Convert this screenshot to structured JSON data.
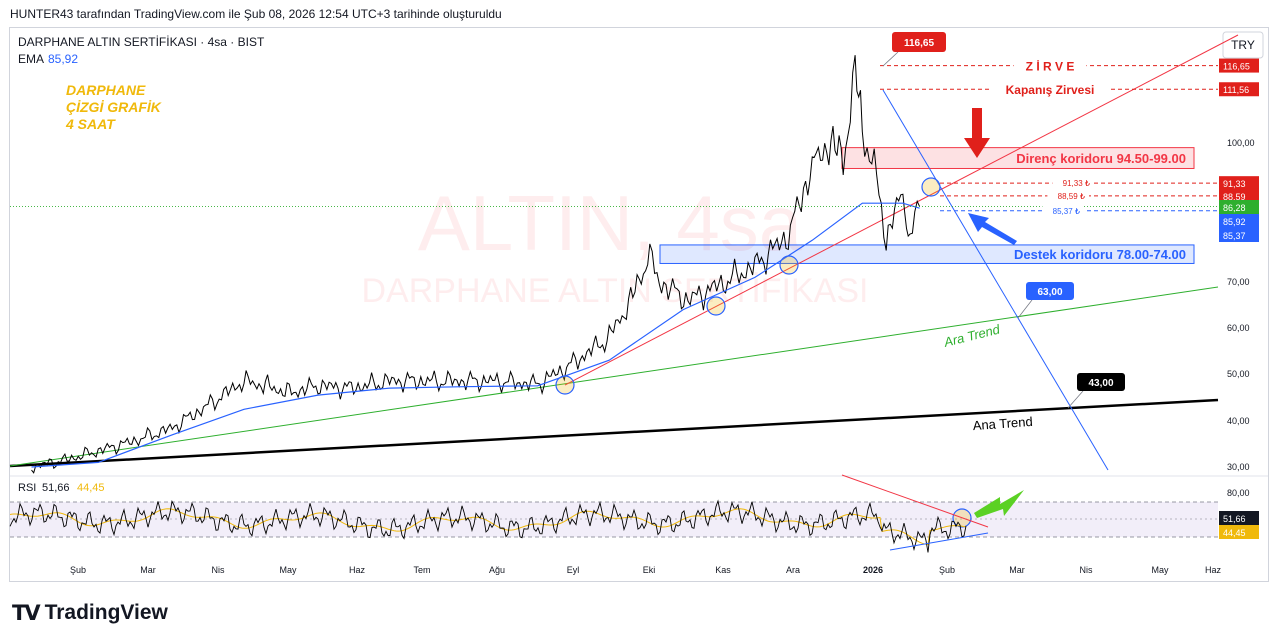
{
  "header": {
    "text": "HUNTER43 tarafından TradingView.com ile Şub 08, 2026 12:54 UTC+3 tarihinde oluşturuldu"
  },
  "chart_data": [
    {
      "type": "line",
      "title": "DARPHANE ALTIN SERTİFİKASI · 4sa · BIST",
      "currency": "TRY",
      "ema_label": "EMA",
      "ema_value": "85,92",
      "watermark": {
        "line1": "ALTIN, 4sa",
        "line2": "DARPHANE ALTIN SERTİFİKASI"
      },
      "overlay_title": [
        "DARPHANE",
        "ÇİZGİ GRAFİK",
        "4 SAAT"
      ],
      "yticks": [
        "100,00",
        "70,00",
        "60,00",
        "50,00",
        "40,00",
        "30,00"
      ],
      "yticks_values": [
        100,
        70,
        60,
        50,
        40,
        30
      ],
      "x_labels": [
        "Şub",
        "Mar",
        "Nis",
        "May",
        "Haz",
        "Tem",
        "Ağu",
        "Eyl",
        "Eki",
        "Kas",
        "Ara",
        "2026",
        "Şub",
        "Mar",
        "Nis",
        "May",
        "Haz"
      ],
      "price_series": [
        [
          "2025-02-01",
          30.0
        ],
        [
          "2025-02-15",
          31.5
        ],
        [
          "2025-03-01",
          33.5
        ],
        [
          "2025-03-15",
          35.5
        ],
        [
          "2025-04-01",
          38.5
        ],
        [
          "2025-04-15",
          43.0
        ],
        [
          "2025-05-01",
          48.5
        ],
        [
          "2025-05-10",
          47.5
        ],
        [
          "2025-05-20",
          46.0
        ],
        [
          "2025-06-01",
          47.5
        ],
        [
          "2025-06-15",
          47.0
        ],
        [
          "2025-07-01",
          48.5
        ],
        [
          "2025-07-15",
          48.5
        ],
        [
          "2025-08-01",
          48.5
        ],
        [
          "2025-08-15",
          48.5
        ],
        [
          "2025-09-01",
          47.8
        ],
        [
          "2025-09-15",
          52.0
        ],
        [
          "2025-10-01",
          58.0
        ],
        [
          "2025-10-10",
          66.0
        ],
        [
          "2025-10-18",
          76.0
        ],
        [
          "2025-10-22",
          70.0
        ],
        [
          "2025-11-03",
          66.0
        ],
        [
          "2025-11-15",
          69.0
        ],
        [
          "2025-12-01",
          73.5
        ],
        [
          "2025-12-15",
          80.0
        ],
        [
          "2025-12-25",
          95.0
        ],
        [
          "2026-01-01",
          100.0
        ],
        [
          "2026-01-07",
          97.0
        ],
        [
          "2026-01-12",
          115.0
        ],
        [
          "2026-01-15",
          104.0
        ],
        [
          "2026-01-20",
          94.0
        ],
        [
          "2026-01-25",
          80.0
        ],
        [
          "2026-02-01",
          89.0
        ],
        [
          "2026-02-04",
          79.0
        ],
        [
          "2026-02-08",
          86.28
        ]
      ],
      "ema_series": [
        [
          "2025-02-01",
          30.0
        ],
        [
          "2025-03-01",
          31.0
        ],
        [
          "2025-04-01",
          37.0
        ],
        [
          "2025-05-01",
          42.5
        ],
        [
          "2025-06-01",
          45.5
        ],
        [
          "2025-07-01",
          47.0
        ],
        [
          "2025-08-01",
          47.3
        ],
        [
          "2025-09-01",
          47.5
        ],
        [
          "2025-10-01",
          53.0
        ],
        [
          "2025-11-01",
          64.0
        ],
        [
          "2025-12-01",
          71.0
        ],
        [
          "2025-12-25",
          79.0
        ],
        [
          "2026-01-15",
          87.0
        ],
        [
          "2026-02-01",
          87.0
        ],
        [
          "2026-02-08",
          85.92
        ]
      ],
      "zones": [
        {
          "label": "Direnç koridoru 94.50-99.00",
          "from": 94.5,
          "to": 99.0,
          "color": "#f23645"
        },
        {
          "label": "Destek koridoru 78.00-74.00",
          "from": 74.0,
          "to": 78.0,
          "color": "#2962ff"
        }
      ],
      "hlines": [
        {
          "label": "Z İ R V E",
          "value": 116.65,
          "tag": "116,65",
          "color": "#e0201b"
        },
        {
          "label": "Kapanış Zirvesi",
          "value": 111.56,
          "tag": "111,56",
          "color": "#e0201b"
        },
        {
          "label": "91,33 ₺",
          "value": 91.33,
          "tag": "91,33",
          "color": "#e0201b"
        },
        {
          "label": "88,59 ₺",
          "value": 88.59,
          "tag": "88,59",
          "color": "#e0201b"
        },
        {
          "label": "85,37 ₺",
          "value": 85.37,
          "tag": "85,37",
          "color": "#2962ff"
        }
      ],
      "trendlines": [
        {
          "label": "Ana Trend",
          "color": "#000000"
        },
        {
          "label": "Ara Trend",
          "color": "#2eaf2e"
        }
      ],
      "callouts": [
        {
          "text": "116,65",
          "color": "#e0201b"
        },
        {
          "text": "63,00",
          "color": "#2962ff"
        },
        {
          "text": "43,00",
          "color": "#000000"
        }
      ],
      "last_price_tags": [
        {
          "text": "86,28",
          "color": "#2eaf2e"
        },
        {
          "text": "85,92",
          "color": "#2962ff"
        },
        {
          "text": "85,37",
          "color": "#2962ff"
        }
      ]
    },
    {
      "type": "line",
      "title": "RSI",
      "rsi_value": "51,66",
      "rsi_ma_value": "44,45",
      "yticks": [
        "80,00"
      ],
      "level_upper": 70,
      "level_mid": 50,
      "level_lower": 30,
      "last_tags": [
        {
          "text": "51,66",
          "color": "#131722"
        },
        {
          "text": "44,45",
          "color": "#f0b90b"
        }
      ]
    }
  ],
  "footer": {
    "logo_text": "TradingView"
  }
}
